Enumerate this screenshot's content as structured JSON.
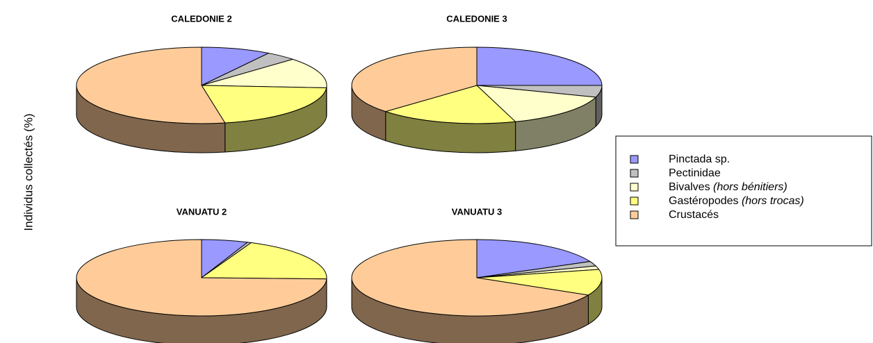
{
  "chart_data": {
    "type": "pie",
    "y_label": "Individus collectés (%)",
    "categories": [
      "CALEDONIE 2",
      "CALEDONIE 3",
      "VANUATU 2",
      "VANUATU 3"
    ],
    "series": [
      {
        "name": "Pinctada sp.",
        "color": "#9999ff",
        "values": [
          9,
          25,
          6,
          18
        ]
      },
      {
        "name": "Pectinidae",
        "color": "#c0c0c0",
        "values": [
          4,
          5,
          0.5,
          2
        ]
      },
      {
        "name": "Bivalves (hors bénitiers)",
        "color": "#ffffcc",
        "values": [
          13,
          15,
          0,
          1.5
        ]
      },
      {
        "name": "Gastéropodes (hors trocas)",
        "color": "#ffff80",
        "values": [
          21,
          18,
          19,
          11
        ]
      },
      {
        "name": "Crustacés",
        "color": "#ffcc99",
        "values": [
          53,
          37,
          74.5,
          67.5
        ]
      }
    ]
  }
}
